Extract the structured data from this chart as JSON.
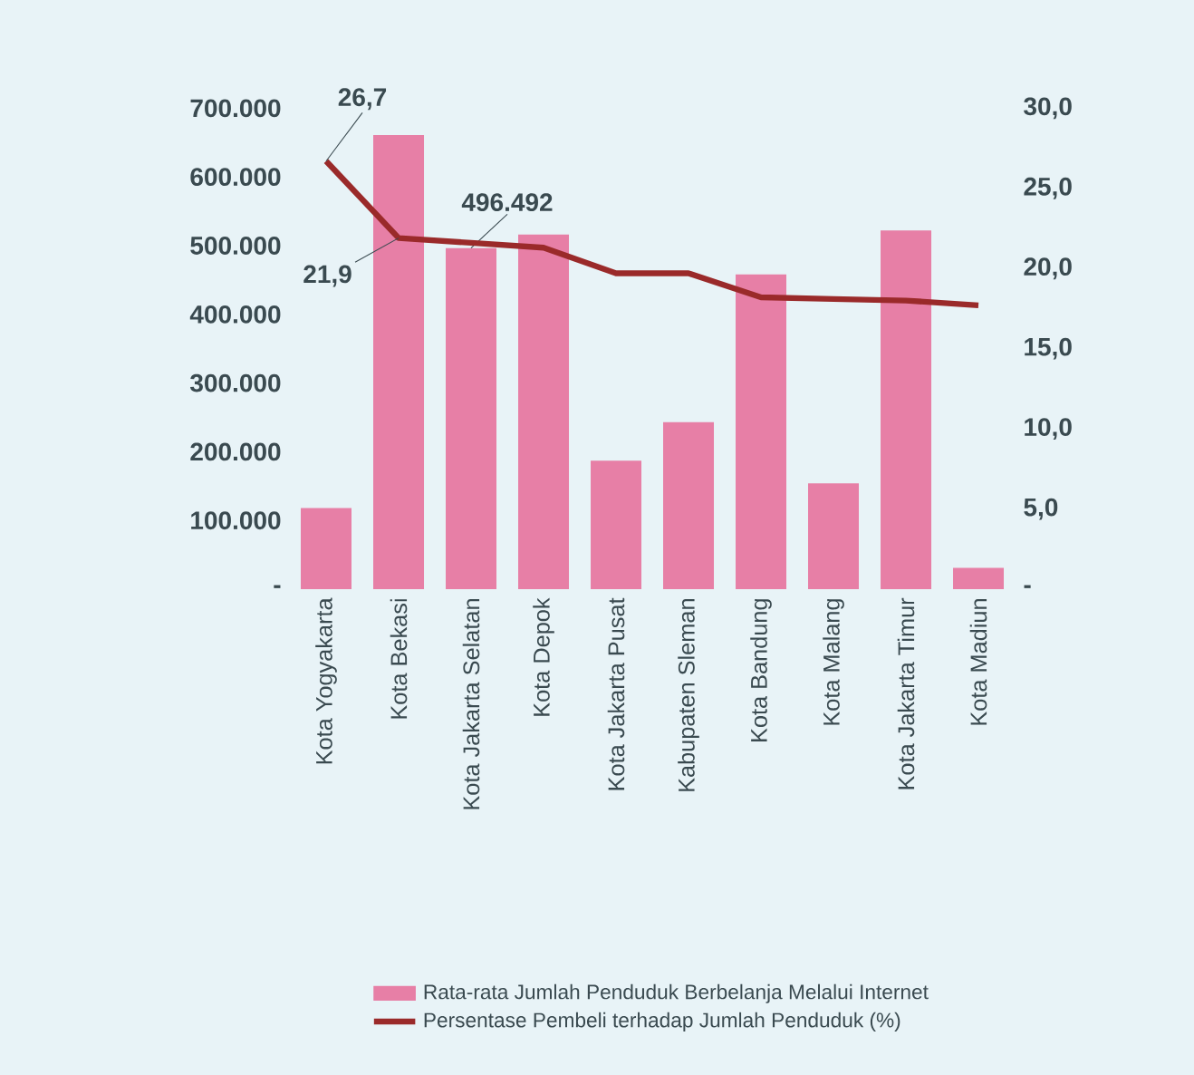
{
  "chart_data": {
    "type": "bar",
    "categories": [
      "Kota Yogyakarta",
      "Kota Bekasi",
      "Kota Jakarta Selatan",
      "Kota Depok",
      "Kota Jakarta Pusat",
      "Kabupaten Sleman",
      "Kota Bandung",
      "Kota Malang",
      "Kota Jakarta Timur",
      "Kota Madiun"
    ],
    "series": [
      {
        "name": "Rata-rata Jumlah Penduduk Berbelanja Melalui Internet",
        "color": "#e77fa6",
        "values": [
          118000,
          661000,
          496492,
          516000,
          187000,
          243000,
          458000,
          154000,
          522000,
          31000
        ],
        "value_labels": [
          null,
          null,
          "496.492",
          null,
          null,
          null,
          null,
          null,
          null,
          null
        ]
      },
      {
        "name": "Persentase Pembeli terhadap Jumlah Penduduk (%)",
        "type": "line",
        "axis": "y2",
        "color": "#9a2a2a",
        "values": [
          26.7,
          21.9,
          21.6,
          21.3,
          19.7,
          19.7,
          18.2,
          18.1,
          18.0,
          17.7
        ],
        "value_labels": [
          "26,7",
          "21,9",
          null,
          null,
          null,
          null,
          null,
          null,
          null,
          null
        ]
      }
    ],
    "ylim": [
      0,
      700000
    ],
    "yticks": [
      {
        "value": 0,
        "label": "-"
      },
      {
        "value": 100000,
        "label": "100.000"
      },
      {
        "value": 200000,
        "label": "200.000"
      },
      {
        "value": 300000,
        "label": "300.000"
      },
      {
        "value": 400000,
        "label": "400.000"
      },
      {
        "value": 500000,
        "label": "500.000"
      },
      {
        "value": 600000,
        "label": "600.000"
      },
      {
        "value": 700000,
        "label": "700.000"
      }
    ],
    "y2lim": [
      0,
      30
    ],
    "y2ticks": [
      {
        "value": 0,
        "label": "-"
      },
      {
        "value": 5,
        "label": "5,0"
      },
      {
        "value": 10,
        "label": "10,0"
      },
      {
        "value": 15,
        "label": "15,0"
      },
      {
        "value": 20,
        "label": "20,0"
      },
      {
        "value": 25,
        "label": "25,0"
      },
      {
        "value": 30,
        "label": "30,0"
      }
    ],
    "legend": "bottom",
    "grid": false
  }
}
